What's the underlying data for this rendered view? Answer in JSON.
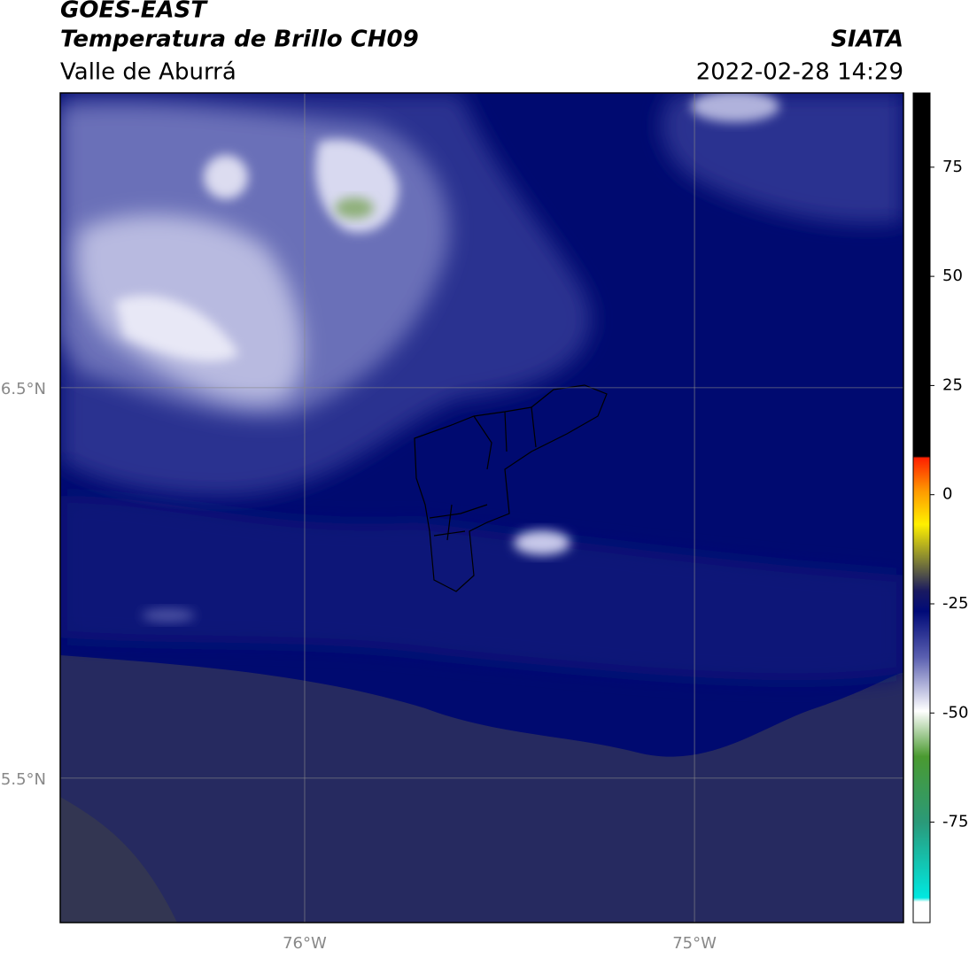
{
  "map": {
    "title": "GOES-EAST",
    "subtitle": "Temperatura de Brillo CH09",
    "source": "SIATA",
    "region": "Valle de Aburrá",
    "timestamp": "2022-02-28 14:29",
    "latlim": [
      5.13,
      7.255
    ],
    "lonlim": [
      -76.627,
      -74.464
    ],
    "latticks": [
      {
        "value": 6.5,
        "label": "6.5°N"
      },
      {
        "value": 5.5,
        "label": "5.5°N"
      }
    ],
    "lonticks": [
      {
        "value": -76,
        "label": "76°W"
      },
      {
        "value": -75,
        "label": "75°W"
      }
    ],
    "colorbar": {
      "lim": [
        -98,
        92
      ],
      "ticks": [
        75,
        50,
        25,
        0,
        -25,
        -50,
        -75
      ]
    }
  }
}
